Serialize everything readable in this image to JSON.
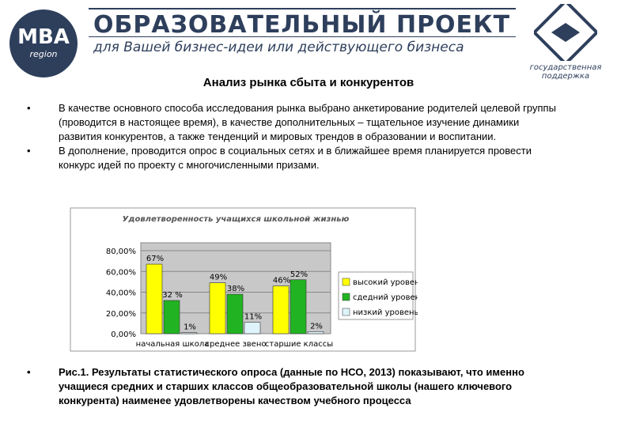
{
  "header": {
    "logo": "MBA",
    "logo_sub": "region",
    "title": "ОБРАЗОВАТЕЛЬНЫЙ ПРОЕКТ",
    "subtitle": "для Вашей бизнес-идеи или действующего бизнеса",
    "badge": "государственная поддержка"
  },
  "heading": "Анализ рынка сбыта и конкурентов",
  "bullets": [
    "В качестве основного способа исследования рынка выбрано анкетирование родителей целевой группы (проводится в настоящее время), в качестве дополнительных – тщательное изучение динамики развития конкурентов, а также тенденций и мировых трендов в образовании и воспитании.",
    "В дополнение, проводится опрос в социальных сетях и в ближайшее время планируется провести конкурс идей по проекту с многочисленными призами."
  ],
  "caption": "Рис.1. Результаты статистического опроса (данные по НСО, 2013) показывают, что именно учащиеся средних и старших классов общеобразовательной школы (нашего ключевого конкурента) наименее удовлетворены качеством учебного процесса",
  "chart_data": {
    "type": "bar",
    "title": "Удовлетворенность учащихся школьной жизнью",
    "categories": [
      "начальная школа",
      "среднее звено",
      "старшие классы"
    ],
    "series": [
      {
        "name": "высокий уровень",
        "color": "#ffff00",
        "values": [
          67,
          49,
          46
        ],
        "value_labels": [
          "67%",
          "49%",
          "46%"
        ]
      },
      {
        "name": "сдедний уровень",
        "color": "#22b322",
        "values": [
          32,
          38,
          52
        ],
        "value_labels": [
          "32 %",
          "38%",
          "52%"
        ]
      },
      {
        "name": "низкий уровень",
        "color": "#dff3fb",
        "values": [
          1,
          11,
          2
        ],
        "value_labels": [
          "1%",
          "11%",
          "2%"
        ]
      }
    ],
    "ylim": [
      0,
      80
    ],
    "yticks": [
      {
        "value": 0,
        "label": "0,00%"
      },
      {
        "value": 20,
        "label": "20,00%"
      },
      {
        "value": 40,
        "label": "40,00%"
      },
      {
        "value": 60,
        "label": "60,00%"
      },
      {
        "value": 80,
        "label": "80,00%"
      }
    ],
    "legend": "right"
  }
}
